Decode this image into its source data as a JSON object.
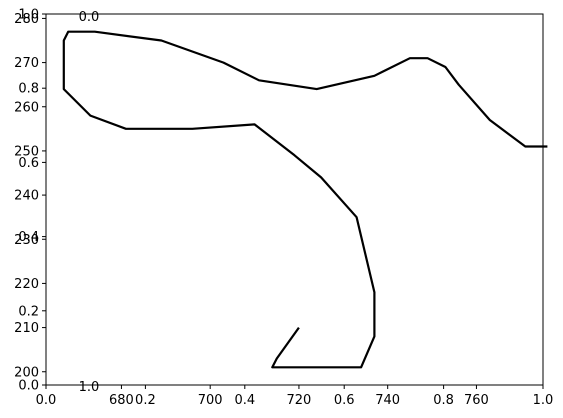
{
  "chart_data": {
    "type": "line",
    "title": "",
    "xlabel": "",
    "ylabel": "",
    "grid": false,
    "xlim": [
      663,
      775
    ],
    "ylim": [
      197,
      281
    ],
    "overlay_axes_ticks": {
      "bottom": [
        "0.0",
        "0.2",
        "0.4",
        "0.6",
        "0.8",
        "1.0"
      ],
      "left": [
        "0.0",
        "0.2",
        "0.4",
        "0.6",
        "0.8",
        "1.0"
      ],
      "top_label": "0.0",
      "bottom_extra_label": "1.0"
    },
    "xticks": [
      680,
      700,
      720,
      740,
      760
    ],
    "yticks": [
      200,
      210,
      220,
      230,
      240,
      250,
      260,
      270,
      280
    ],
    "series": [
      {
        "color": "#000000",
        "x": [
          720,
          715,
          714,
          715,
          724,
          734,
          737,
          737,
          733,
          725,
          719,
          710,
          696,
          681,
          673,
          668,
          667,
          667,
          668,
          674,
          689,
          703,
          711,
          724,
          737,
          745,
          749,
          753,
          756,
          763,
          771,
          776
        ],
        "y": [
          210,
          203,
          201,
          201,
          201,
          201,
          208,
          218,
          235,
          244,
          249,
          256,
          255,
          255,
          258,
          263,
          264,
          275,
          277,
          277,
          275,
          270,
          266,
          264,
          267,
          271,
          271,
          269,
          265,
          257,
          251,
          251
        ]
      }
    ]
  }
}
